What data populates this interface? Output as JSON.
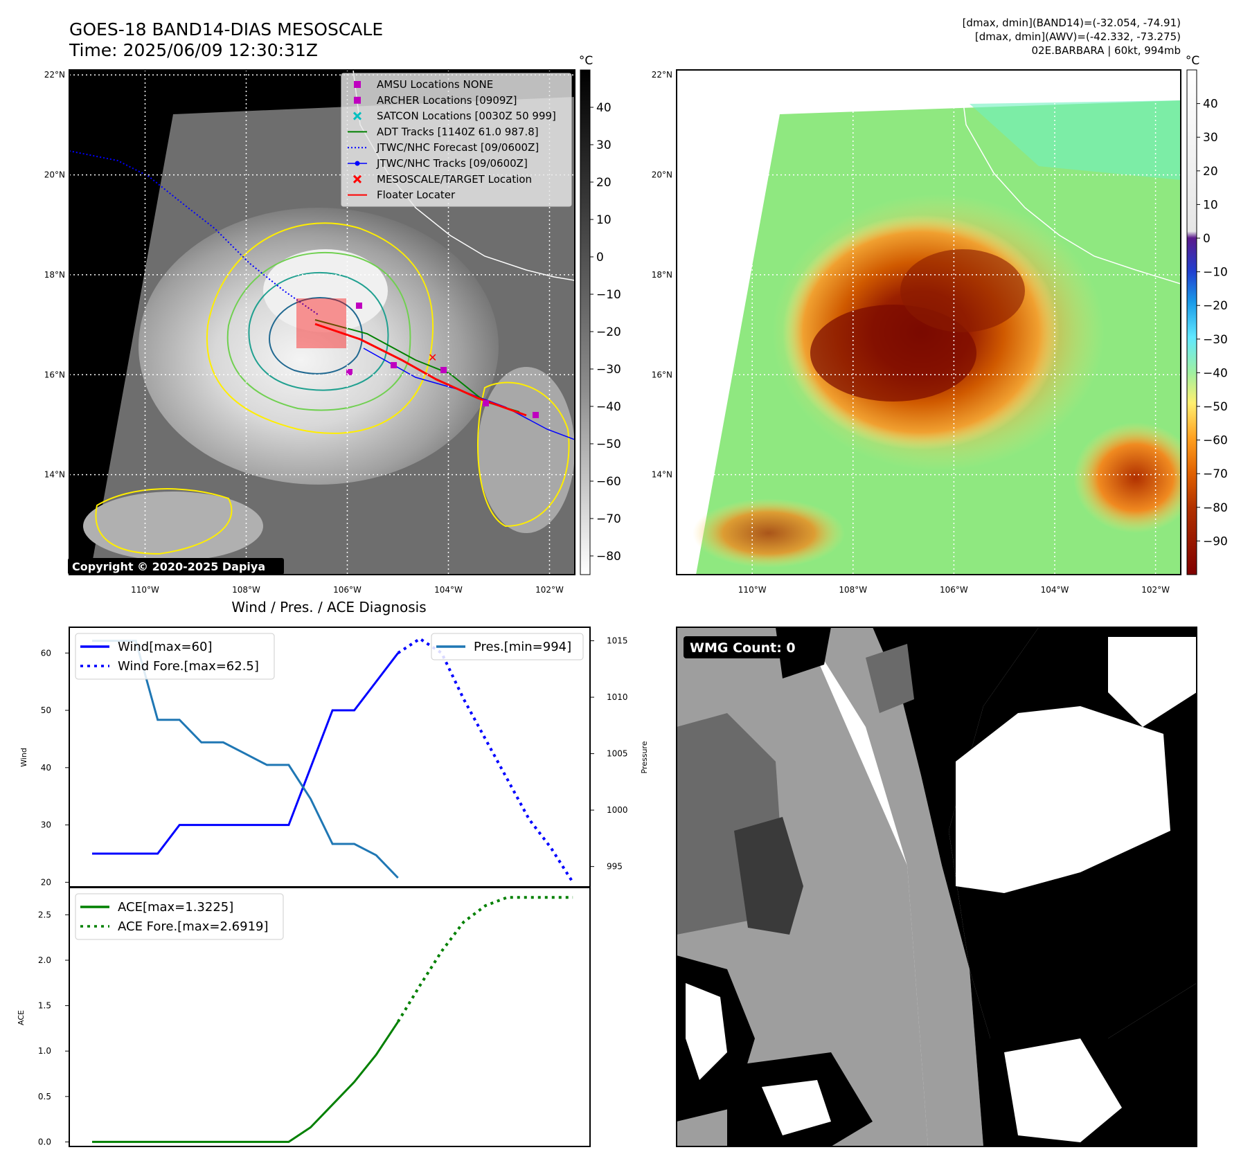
{
  "header": {
    "title_line1": "GOES-18 BAND14-DIAS MESOSCALE",
    "title_line2": "Time: 2025/06/09 12:30:31Z",
    "info_line1": "[dmax, dmin](BAND14)=(-32.054, -74.91)",
    "info_line2": "[dmax, dmin](AWV)=(-42.332, -73.275)",
    "info_line3": "02E.BARBARA | 60kt, 994mb"
  },
  "copyright": "Copyright © 2020-2025 Dapiya",
  "map": {
    "lon_ticks": [
      "110°W",
      "108°W",
      "106°W",
      "104°W",
      "102°W"
    ],
    "lat_ticks": [
      "22°N",
      "20°N",
      "18°N",
      "16°N",
      "14°N"
    ],
    "lon_range": [
      -111.5,
      -101.5
    ],
    "lat_range": [
      12,
      22.1
    ],
    "lon_values": [
      -110,
      -108,
      -106,
      -104,
      -102
    ],
    "lat_values": [
      22,
      20,
      18,
      16,
      14
    ]
  },
  "ir_colorbar": {
    "unit": "°C",
    "ticks": [
      "40",
      "30",
      "20",
      "10",
      "0",
      "−10",
      "−20",
      "−30",
      "−40",
      "−50",
      "−60",
      "−70",
      "−80"
    ],
    "range": [
      -85,
      50
    ]
  },
  "wv_colorbar": {
    "unit": "°C",
    "ticks": [
      "40",
      "30",
      "20",
      "10",
      "0",
      "−10",
      "−20",
      "−30",
      "−40",
      "−50",
      "−60",
      "−70",
      "−80",
      "−90"
    ],
    "range": [
      -100,
      50
    ]
  },
  "map_legend": [
    {
      "label": "AMSU Locations NONE",
      "marker": "square",
      "color": "#bf00bf"
    },
    {
      "label": "ARCHER Locations [0909Z]",
      "marker": "square",
      "color": "#bf00bf"
    },
    {
      "label": "SATCON Locations [0030Z 50 999]",
      "marker": "x",
      "color": "#00bfbf"
    },
    {
      "label": "ADT Tracks [1140Z 61.0 987.8]",
      "marker": "line",
      "color": "#008000"
    },
    {
      "label": "JTWC/NHC Forecast [09/0600Z]",
      "marker": "dotted",
      "color": "#0000ff"
    },
    {
      "label": "JTWC/NHC Tracks [09/0600Z]",
      "marker": "line-dot",
      "color": "#0000ff"
    },
    {
      "label": "MESOSCALE/TARGET Location",
      "marker": "x",
      "color": "#ff0000"
    },
    {
      "label": "Floater Locater",
      "marker": "line",
      "color": "#ff0000"
    }
  ],
  "diagnosis_title": "Wind / Pres. / ACE Diagnosis",
  "wmg_label": "WMG Count: 0",
  "colors": {
    "wind": "#0000ff",
    "pressure": "#1f77b4",
    "ace": "#008000"
  },
  "chart_data": [
    {
      "type": "line",
      "title": "Wind / Pres. / ACE Diagnosis",
      "ylabel": "Wind",
      "y2label": "Pressure",
      "ylim": [
        19.2,
        64.5
      ],
      "y2lim": [
        993.2,
        1016.2
      ],
      "yticks": [
        20,
        30,
        40,
        50,
        60
      ],
      "y2ticks": [
        995,
        1000,
        1005,
        1010,
        1015
      ],
      "series": [
        {
          "name": "Wind[max=60]",
          "axis": "left",
          "style": "solid",
          "x": [
            0,
            1,
            2,
            3,
            4,
            5,
            6,
            7,
            8,
            9,
            10,
            11,
            12,
            13,
            14
          ],
          "values": [
            25,
            25,
            25,
            25,
            30,
            30,
            30,
            30,
            30,
            30,
            40,
            50,
            50,
            55,
            60
          ]
        },
        {
          "name": "Wind Fore.[max=62.5]",
          "axis": "left",
          "style": "dotted",
          "x": [
            14,
            15,
            16,
            17,
            18,
            19,
            20,
            21,
            22
          ],
          "values": [
            60,
            62.5,
            60,
            52,
            45,
            38,
            31,
            26,
            20
          ]
        },
        {
          "name": "Pres.[min=994]",
          "axis": "right",
          "style": "solid",
          "x": [
            0,
            1,
            2,
            3,
            4,
            5,
            6,
            7,
            8,
            9,
            10,
            11,
            12,
            13,
            14
          ],
          "values": [
            1015,
            1015,
            1015,
            1008,
            1008,
            1006,
            1006,
            1005,
            1004,
            1004,
            1001,
            997,
            997,
            996,
            994
          ]
        }
      ]
    },
    {
      "type": "line",
      "ylabel": "ACE",
      "ylim": [
        -0.05,
        2.8
      ],
      "yticks": [
        0.0,
        0.5,
        1.0,
        1.5,
        2.0,
        2.5
      ],
      "ytick_labels": [
        "0.0",
        "0.5",
        "1.0",
        "1.5",
        "2.0",
        "2.5"
      ],
      "series": [
        {
          "name": "ACE[max=1.3225]",
          "style": "solid",
          "x": [
            0,
            1,
            2,
            3,
            4,
            5,
            6,
            7,
            8,
            9,
            10,
            11,
            12,
            13,
            14
          ],
          "values": [
            0,
            0,
            0,
            0,
            0,
            0,
            0,
            0,
            0,
            0,
            0.16,
            0.41,
            0.66,
            0.96,
            1.3225
          ]
        },
        {
          "name": "ACE Fore.[max=2.6919]",
          "style": "dotted",
          "x": [
            14,
            15,
            16,
            17,
            18,
            19,
            20,
            21,
            22
          ],
          "values": [
            1.3225,
            1.72,
            2.1,
            2.42,
            2.6,
            2.6919,
            2.6919,
            2.6919,
            2.6919
          ]
        }
      ]
    }
  ]
}
